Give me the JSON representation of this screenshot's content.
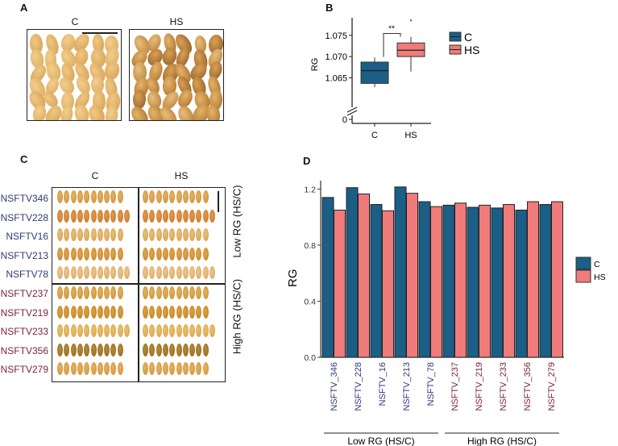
{
  "panels": {
    "A": {
      "label": "A",
      "images": [
        {
          "caption": "C",
          "description": "control grains, light golden"
        },
        {
          "caption": "HS",
          "description": "heat-stress grains, chalky brown"
        }
      ]
    },
    "B": {
      "label": "B"
    },
    "C": {
      "label": "C",
      "column_headers": [
        "C",
        "HS"
      ],
      "groups": [
        {
          "label": "Low RG (HS/C)",
          "color": "#2f3a7a",
          "rows": [
            "NSFTV346",
            "NSFTV228",
            "NSFTV16",
            "NSFTV213",
            "NSFTV78"
          ]
        },
        {
          "label": "High RG (HS/C)",
          "color": "#7a1f3e",
          "rows": [
            "NSFTV237",
            "NSFTV219",
            "NSFTV233",
            "NSFTV356",
            "NSFTV279"
          ]
        }
      ]
    },
    "D": {
      "label": "D"
    }
  },
  "colors": {
    "C": "#1b5e86",
    "HS": "#ef7b7b",
    "low_group": "#2f3a7a",
    "high_group": "#7a1f3e"
  },
  "chart_data": [
    {
      "id": "B",
      "type": "box",
      "title": "",
      "xlabel": "",
      "ylabel": "RG",
      "categories": [
        "C",
        "HS"
      ],
      "y_ticks": [
        "0",
        "1.065",
        "1.070",
        "1.075"
      ],
      "axis_break": true,
      "ylim": [
        1.0615,
        1.0795
      ],
      "series": [
        {
          "name": "C",
          "min": 1.0628,
          "q1": 1.0637,
          "median": 1.0667,
          "q3": 1.0687,
          "max": 1.0698,
          "outliers": []
        },
        {
          "name": "HS",
          "min": 1.0665,
          "q1": 1.07,
          "median": 1.0715,
          "q3": 1.0732,
          "max": 1.0746,
          "outliers": [
            1.0785
          ]
        }
      ],
      "significance": {
        "between": [
          "C",
          "HS"
        ],
        "label": "**"
      },
      "legend": {
        "position": "right",
        "entries": [
          "C",
          "HS"
        ]
      }
    },
    {
      "id": "D",
      "type": "bar",
      "title": "",
      "xlabel": "",
      "ylabel": "RG",
      "ylim": [
        0,
        1.26
      ],
      "y_ticks": [
        0.0,
        0.4,
        0.8,
        1.2
      ],
      "y_tick_labels": [
        "0.0",
        "0.4",
        "0.8",
        "1.2"
      ],
      "categories": [
        "NSFTV_346",
        "NSFTV_228",
        "NSFTV_16",
        "NSFTV_213",
        "NSFTV_78",
        "NSFTV_237",
        "NSFTV_219",
        "NSFTV_233",
        "NSFTV_356",
        "NSFTV_279"
      ],
      "category_groups": [
        {
          "label": "Low RG (HS/C)",
          "from": 0,
          "to": 4
        },
        {
          "label": "High RG (HS/C)",
          "from": 5,
          "to": 9
        }
      ],
      "series": [
        {
          "name": "C",
          "values": [
            1.14,
            1.21,
            1.09,
            1.215,
            1.11,
            1.085,
            1.07,
            1.065,
            1.05,
            1.09
          ]
        },
        {
          "name": "HS",
          "values": [
            1.05,
            1.165,
            1.045,
            1.17,
            1.075,
            1.1,
            1.085,
            1.09,
            1.11,
            1.11
          ]
        }
      ],
      "legend": {
        "position": "right",
        "entries": [
          "C",
          "HS"
        ]
      }
    }
  ]
}
